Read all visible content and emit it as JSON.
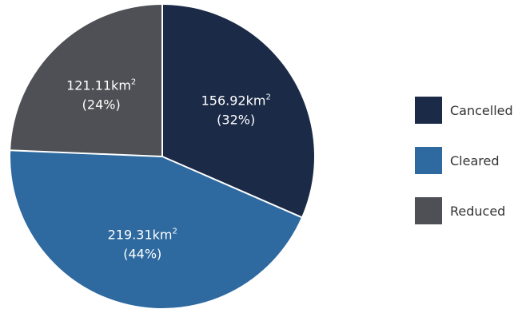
{
  "chart_data": {
    "type": "pie",
    "unit": "km",
    "unit_sup": "2",
    "start_angle_deg": 0,
    "direction": "clockwise",
    "legend_position": "right",
    "slices": [
      {
        "name": "Cancelled",
        "value": 156.92,
        "value_text": "156.92",
        "percent_text": "(32%)",
        "color": "#1b2a47"
      },
      {
        "name": "Cleared",
        "value": 219.31,
        "value_text": "219.31",
        "percent_text": "(44%)",
        "color": "#2e6aa0"
      },
      {
        "name": "Reduced",
        "value": 121.11,
        "value_text": "121.11",
        "percent_text": "(24%)",
        "color": "#4e5056"
      }
    ]
  }
}
